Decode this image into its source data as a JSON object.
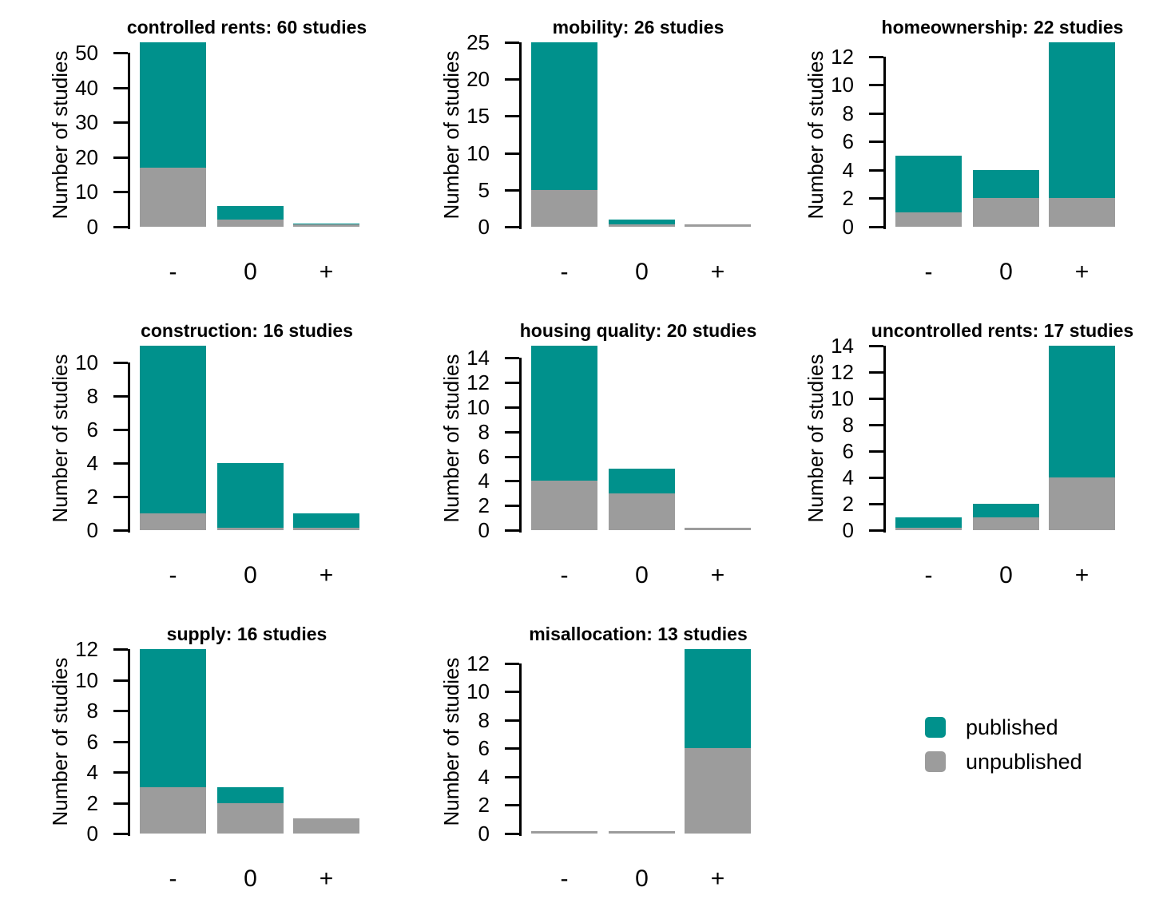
{
  "chart_data": {
    "type": "bar",
    "stacked": true,
    "grid": "off",
    "layout": "3x3 grid of small multiples, legend in bottom-right cell",
    "categories": [
      "-",
      "0",
      "+"
    ],
    "ylabel": "Number of studies",
    "colors": {
      "published": "#00918C",
      "unpublished": "#9C9C9C",
      "axis": "#000000",
      "background": "#FFFFFF"
    },
    "legend": {
      "position": "bottom-right",
      "items": [
        {
          "label": "published",
          "color": "#00918C"
        },
        {
          "label": "unpublished",
          "color": "#9C9C9C"
        }
      ]
    },
    "panels": [
      {
        "slug": "controlled-rents",
        "title": "controlled rents: 60 studies",
        "total_studies": 60,
        "ticks": [
          0,
          10,
          20,
          30,
          40,
          50
        ],
        "series": [
          {
            "name": "published",
            "values": [
              36,
              4,
              1
            ]
          },
          {
            "name": "unpublished",
            "values": [
              17,
              2,
              0
            ]
          }
        ]
      },
      {
        "slug": "mobility",
        "title": "mobility: 26 studies",
        "total_studies": 26,
        "ticks": [
          0,
          5,
          10,
          15,
          20,
          25
        ],
        "series": [
          {
            "name": "published",
            "values": [
              20,
              1,
              0
            ]
          },
          {
            "name": "unpublished",
            "values": [
              5,
              0,
              0
            ]
          }
        ]
      },
      {
        "slug": "homeownership",
        "title": "homeownership: 22 studies",
        "total_studies": 22,
        "ticks": [
          0,
          2,
          4,
          6,
          8,
          10,
          12
        ],
        "series": [
          {
            "name": "published",
            "values": [
              4,
              2,
              11
            ]
          },
          {
            "name": "unpublished",
            "values": [
              1,
              2,
              2
            ]
          }
        ]
      },
      {
        "slug": "construction",
        "title": "construction: 16 studies",
        "total_studies": 16,
        "ticks": [
          0,
          2,
          4,
          6,
          8,
          10
        ],
        "series": [
          {
            "name": "published",
            "values": [
              10,
              4,
              1
            ]
          },
          {
            "name": "unpublished",
            "values": [
              1,
              0,
              0
            ]
          }
        ]
      },
      {
        "slug": "housing-quality",
        "title": "housing quality: 20 studies",
        "total_studies": 20,
        "ticks": [
          0,
          2,
          4,
          6,
          8,
          10,
          12,
          14
        ],
        "series": [
          {
            "name": "published",
            "values": [
              11,
              2,
              0
            ]
          },
          {
            "name": "unpublished",
            "values": [
              4,
              3,
              0
            ]
          }
        ]
      },
      {
        "slug": "uncontrolled-rents",
        "title": "uncontrolled rents: 17 studies",
        "total_studies": 17,
        "ticks": [
          0,
          2,
          4,
          6,
          8,
          10,
          12,
          14
        ],
        "series": [
          {
            "name": "published",
            "values": [
              1,
              1,
              10
            ]
          },
          {
            "name": "unpublished",
            "values": [
              0,
              1,
              4
            ]
          }
        ]
      },
      {
        "slug": "supply",
        "title": "supply: 16 studies",
        "total_studies": 16,
        "ticks": [
          0,
          2,
          4,
          6,
          8,
          10,
          12
        ],
        "series": [
          {
            "name": "published",
            "values": [
              9,
              1,
              0
            ]
          },
          {
            "name": "unpublished",
            "values": [
              3,
              2,
              1
            ]
          }
        ]
      },
      {
        "slug": "misallocation",
        "title": "misallocation: 13 studies",
        "total_studies": 13,
        "ticks": [
          0,
          2,
          4,
          6,
          8,
          10,
          12
        ],
        "series": [
          {
            "name": "published",
            "values": [
              0,
              0,
              7
            ]
          },
          {
            "name": "unpublished",
            "values": [
              0,
              0,
              6
            ]
          }
        ]
      }
    ]
  }
}
